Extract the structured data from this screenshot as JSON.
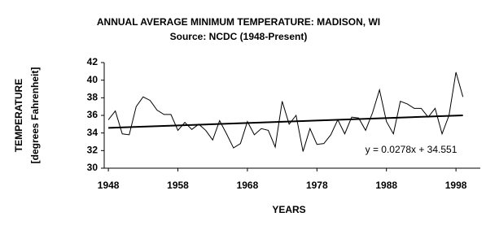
{
  "chart_data": {
    "type": "line",
    "title": "ANNUAL AVERAGE MINIMUM TEMPERATURE: MADISON, WI",
    "subtitle": "Source: NCDC (1948-Present)",
    "y_label": [
      "TEMPERATURE",
      "[degrees Fahrenheit]"
    ],
    "x_label": "YEARS",
    "x": [
      1948,
      1949,
      1950,
      1951,
      1952,
      1953,
      1954,
      1955,
      1956,
      1957,
      1958,
      1959,
      1960,
      1961,
      1962,
      1963,
      1964,
      1965,
      1966,
      1967,
      1968,
      1969,
      1970,
      1971,
      1972,
      1973,
      1974,
      1975,
      1976,
      1977,
      1978,
      1979,
      1980,
      1981,
      1982,
      1983,
      1984,
      1985,
      1986,
      1987,
      1988,
      1989,
      1990,
      1991,
      1992,
      1993,
      1994,
      1995,
      1996,
      1997,
      1998,
      1999
    ],
    "values": [
      35.5,
      36.5,
      33.9,
      33.8,
      37.0,
      38.1,
      37.7,
      36.6,
      36.1,
      36.1,
      34.3,
      35.2,
      34.4,
      35.0,
      34.3,
      33.2,
      35.4,
      33.9,
      32.3,
      32.8,
      35.3,
      33.8,
      34.5,
      34.3,
      32.4,
      37.6,
      35.0,
      36.0,
      31.9,
      34.5,
      32.7,
      32.8,
      33.8,
      35.5,
      33.9,
      35.8,
      35.7,
      34.3,
      36.3,
      38.9,
      35.3,
      33.9,
      37.6,
      37.3,
      36.8,
      36.8,
      35.8,
      36.8,
      33.9,
      36.0,
      40.9,
      38.1
    ],
    "color": "#000000",
    "trendline": {
      "slope": 0.0278,
      "intercept": 34.551,
      "label": "y = 0.0278x + 34.551"
    },
    "xlim": [
      1947.4,
      2001.5
    ],
    "xticks": [
      1948,
      1958,
      1968,
      1978,
      1988,
      1998
    ],
    "ylim": [
      30,
      42
    ],
    "yticks": [
      30,
      32,
      34,
      36,
      38,
      40,
      42
    ],
    "grid": false
  }
}
